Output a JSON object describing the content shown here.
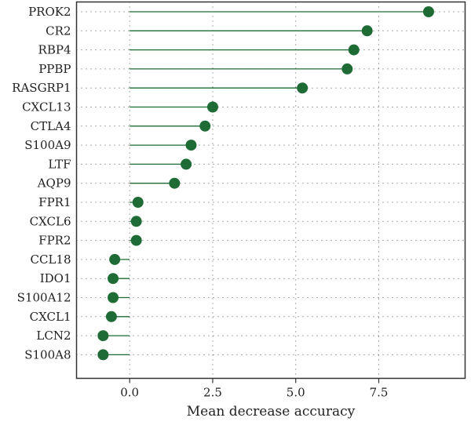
{
  "chart_data": {
    "type": "scatter",
    "title": "",
    "xlabel": "Mean decrease accuracy",
    "ylabel": "",
    "xlim": [
      -1.6,
      10.1
    ],
    "x_ticks": [
      "0.0",
      "2.5",
      "5.0",
      "7.5"
    ],
    "x_tick_values": [
      0,
      2.5,
      5,
      7.5
    ],
    "grid": true,
    "point_color": "#1f6b35",
    "categories": [
      "PROK2",
      "CR2",
      "RBP4",
      "PPBP",
      "RASGRP1",
      "CXCL13",
      "CTLA4",
      "S100A9",
      "LTF",
      "AQP9",
      "FPR1",
      "CXCL6",
      "FPR2",
      "CCL18",
      "IDO1",
      "S100A12",
      "CXCL1",
      "LCN2",
      "S100A8"
    ],
    "values": [
      9.0,
      7.15,
      6.75,
      6.55,
      5.2,
      2.5,
      2.27,
      1.85,
      1.7,
      1.35,
      0.25,
      0.2,
      0.2,
      -0.45,
      -0.5,
      -0.5,
      -0.55,
      -0.8,
      -0.8
    ]
  }
}
